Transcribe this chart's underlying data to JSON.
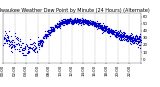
{
  "title": "Milwaukee Weather Dew Point by Minute (24 Hours) (Alternate)",
  "bg_color": "#ffffff",
  "dot_color": "#0000cc",
  "grid_color": "#888888",
  "ylim": [
    -5,
    65
  ],
  "xlim": [
    0,
    1440
  ],
  "yticks": [
    0,
    10,
    20,
    30,
    40,
    50,
    60
  ],
  "ytick_labels": [
    "0",
    "10",
    "20",
    "30",
    "40",
    "50",
    "60"
  ],
  "xtick_hours": [
    0,
    2,
    4,
    6,
    8,
    10,
    12,
    14,
    16,
    18,
    20,
    22,
    24
  ],
  "dot_size": 0.8,
  "title_fontsize": 3.5,
  "tick_fontsize": 2.8,
  "curve_seed": 10
}
